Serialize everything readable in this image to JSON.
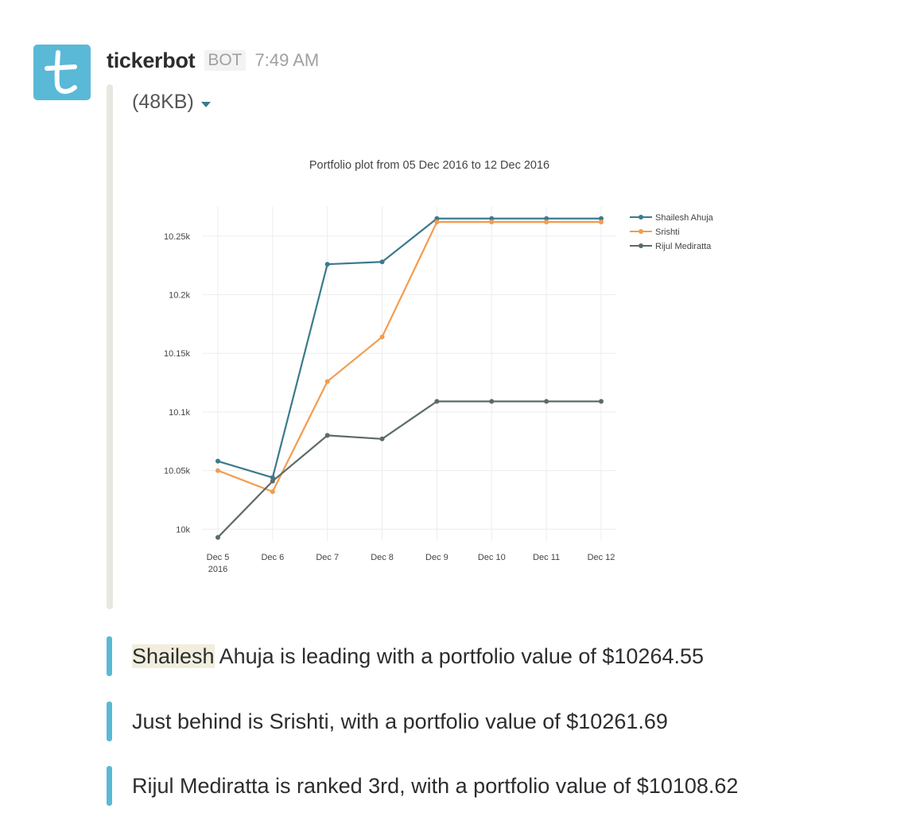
{
  "message": {
    "avatar_letter": "t",
    "username": "tickerbot",
    "badge": "BOT",
    "timestamp": "7:49 AM",
    "attachment_size": "(48KB)"
  },
  "chart_data": {
    "type": "line",
    "title": "Portfolio plot from 05 Dec 2016 to 12 Dec 2016",
    "x": [
      "Dec 5",
      "Dec 6",
      "Dec 7",
      "Dec 8",
      "Dec 9",
      "Dec 10",
      "Dec 11",
      "Dec 12"
    ],
    "x_sublabel_first": "2016",
    "yticks": [
      10000,
      10050,
      10100,
      10150,
      10200,
      10250
    ],
    "ytick_labels": [
      "10k",
      "10.05k",
      "10.1k",
      "10.15k",
      "10.2k",
      "10.25k"
    ],
    "ylim": [
      9990,
      10275
    ],
    "grid": true,
    "legend_position": "top-right",
    "series": [
      {
        "name": "Shailesh Ahuja",
        "color": "#3b7a8c",
        "values": [
          10058,
          10044,
          10226,
          10228,
          10265,
          10265,
          10265,
          10265
        ]
      },
      {
        "name": "Srishti",
        "color": "#f39c4f",
        "values": [
          10050,
          10032,
          10126,
          10164,
          10262,
          10262,
          10262,
          10262
        ]
      },
      {
        "name": "Rijul Mediratta",
        "color": "#5c6b6a",
        "values": [
          9993,
          10041,
          10080,
          10077,
          10109,
          10109,
          10109,
          10109
        ]
      }
    ]
  },
  "messages": [
    {
      "highlight": "Shailesh",
      "rest": " Ahuja is leading with a portfolio value of $10264.55"
    },
    {
      "highlight": "",
      "rest": "Just behind is Srishti, with a portfolio value of $10261.69"
    },
    {
      "highlight": "",
      "rest": "Rijul Mediratta is ranked 3rd, with a portfolio value of $10108.62"
    }
  ]
}
